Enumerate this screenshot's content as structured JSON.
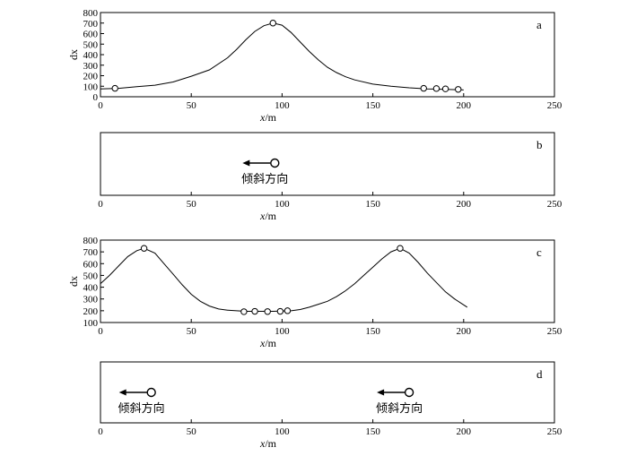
{
  "chart_data": [
    {
      "type": "line",
      "panel_label": "a",
      "xlabel": "x/m",
      "ylabel": "dx",
      "xlim": [
        0,
        250
      ],
      "ylim": [
        0,
        800
      ],
      "xticks": [
        0,
        50,
        100,
        150,
        200,
        250
      ],
      "yticks": [
        0,
        100,
        200,
        300,
        400,
        500,
        600,
        700,
        800
      ],
      "series": [
        {
          "x": [
            0,
            10,
            20,
            30,
            40,
            50,
            60,
            70,
            75,
            80,
            85,
            90,
            95,
            100,
            105,
            110,
            115,
            120,
            125,
            130,
            135,
            140,
            150,
            160,
            170,
            180,
            190,
            200
          ],
          "y": [
            75,
            80,
            95,
            110,
            140,
            195,
            255,
            370,
            450,
            540,
            620,
            675,
            700,
            680,
            610,
            520,
            430,
            350,
            280,
            230,
            190,
            160,
            120,
            100,
            85,
            75,
            70,
            65
          ]
        }
      ],
      "markers": {
        "x": [
          8,
          95,
          178,
          185,
          190,
          197
        ],
        "y": [
          80,
          700,
          80,
          78,
          75,
          70
        ]
      }
    },
    {
      "type": "scatter",
      "panel_label": "b",
      "xlabel": "x/m",
      "xlim": [
        0,
        250
      ],
      "xticks": [
        0,
        50,
        100,
        150,
        200,
        250
      ],
      "annotations": [
        {
          "x": 96,
          "text": "倾斜方向",
          "direction": "left"
        }
      ]
    },
    {
      "type": "line",
      "panel_label": "c",
      "xlabel": "x/m",
      "ylabel": "dx",
      "xlim": [
        0,
        250
      ],
      "ylim": [
        100,
        800
      ],
      "xticks": [
        0,
        50,
        100,
        150,
        200,
        250
      ],
      "yticks": [
        100,
        200,
        300,
        400,
        500,
        600,
        700,
        800
      ],
      "series": [
        {
          "x": [
            0,
            5,
            10,
            15,
            20,
            24,
            30,
            35,
            40,
            45,
            50,
            55,
            60,
            65,
            70,
            75,
            80,
            85,
            90,
            95,
            100,
            105,
            110,
            115,
            120,
            125,
            130,
            135,
            140,
            145,
            150,
            155,
            160,
            165,
            170,
            175,
            180,
            185,
            190,
            195,
            200,
            202
          ],
          "y": [
            430,
            500,
            580,
            660,
            710,
            730,
            690,
            600,
            510,
            420,
            340,
            280,
            240,
            215,
            205,
            200,
            195,
            195,
            195,
            195,
            198,
            200,
            210,
            230,
            255,
            280,
            320,
            370,
            430,
            500,
            570,
            640,
            700,
            730,
            690,
            610,
            520,
            440,
            360,
            300,
            250,
            230
          ]
        }
      ],
      "markers": {
        "x": [
          24,
          79,
          85,
          92,
          99,
          103,
          165
        ],
        "y": [
          730,
          192,
          195,
          193,
          195,
          200,
          730
        ]
      }
    },
    {
      "type": "scatter",
      "panel_label": "d",
      "xlabel": "x/m",
      "xlim": [
        0,
        250
      ],
      "xticks": [
        0,
        50,
        100,
        150,
        200,
        250
      ],
      "annotations": [
        {
          "x": 28,
          "text": "倾斜方向",
          "direction": "left"
        },
        {
          "x": 170,
          "text": "倾斜方向",
          "direction": "left"
        }
      ]
    }
  ]
}
